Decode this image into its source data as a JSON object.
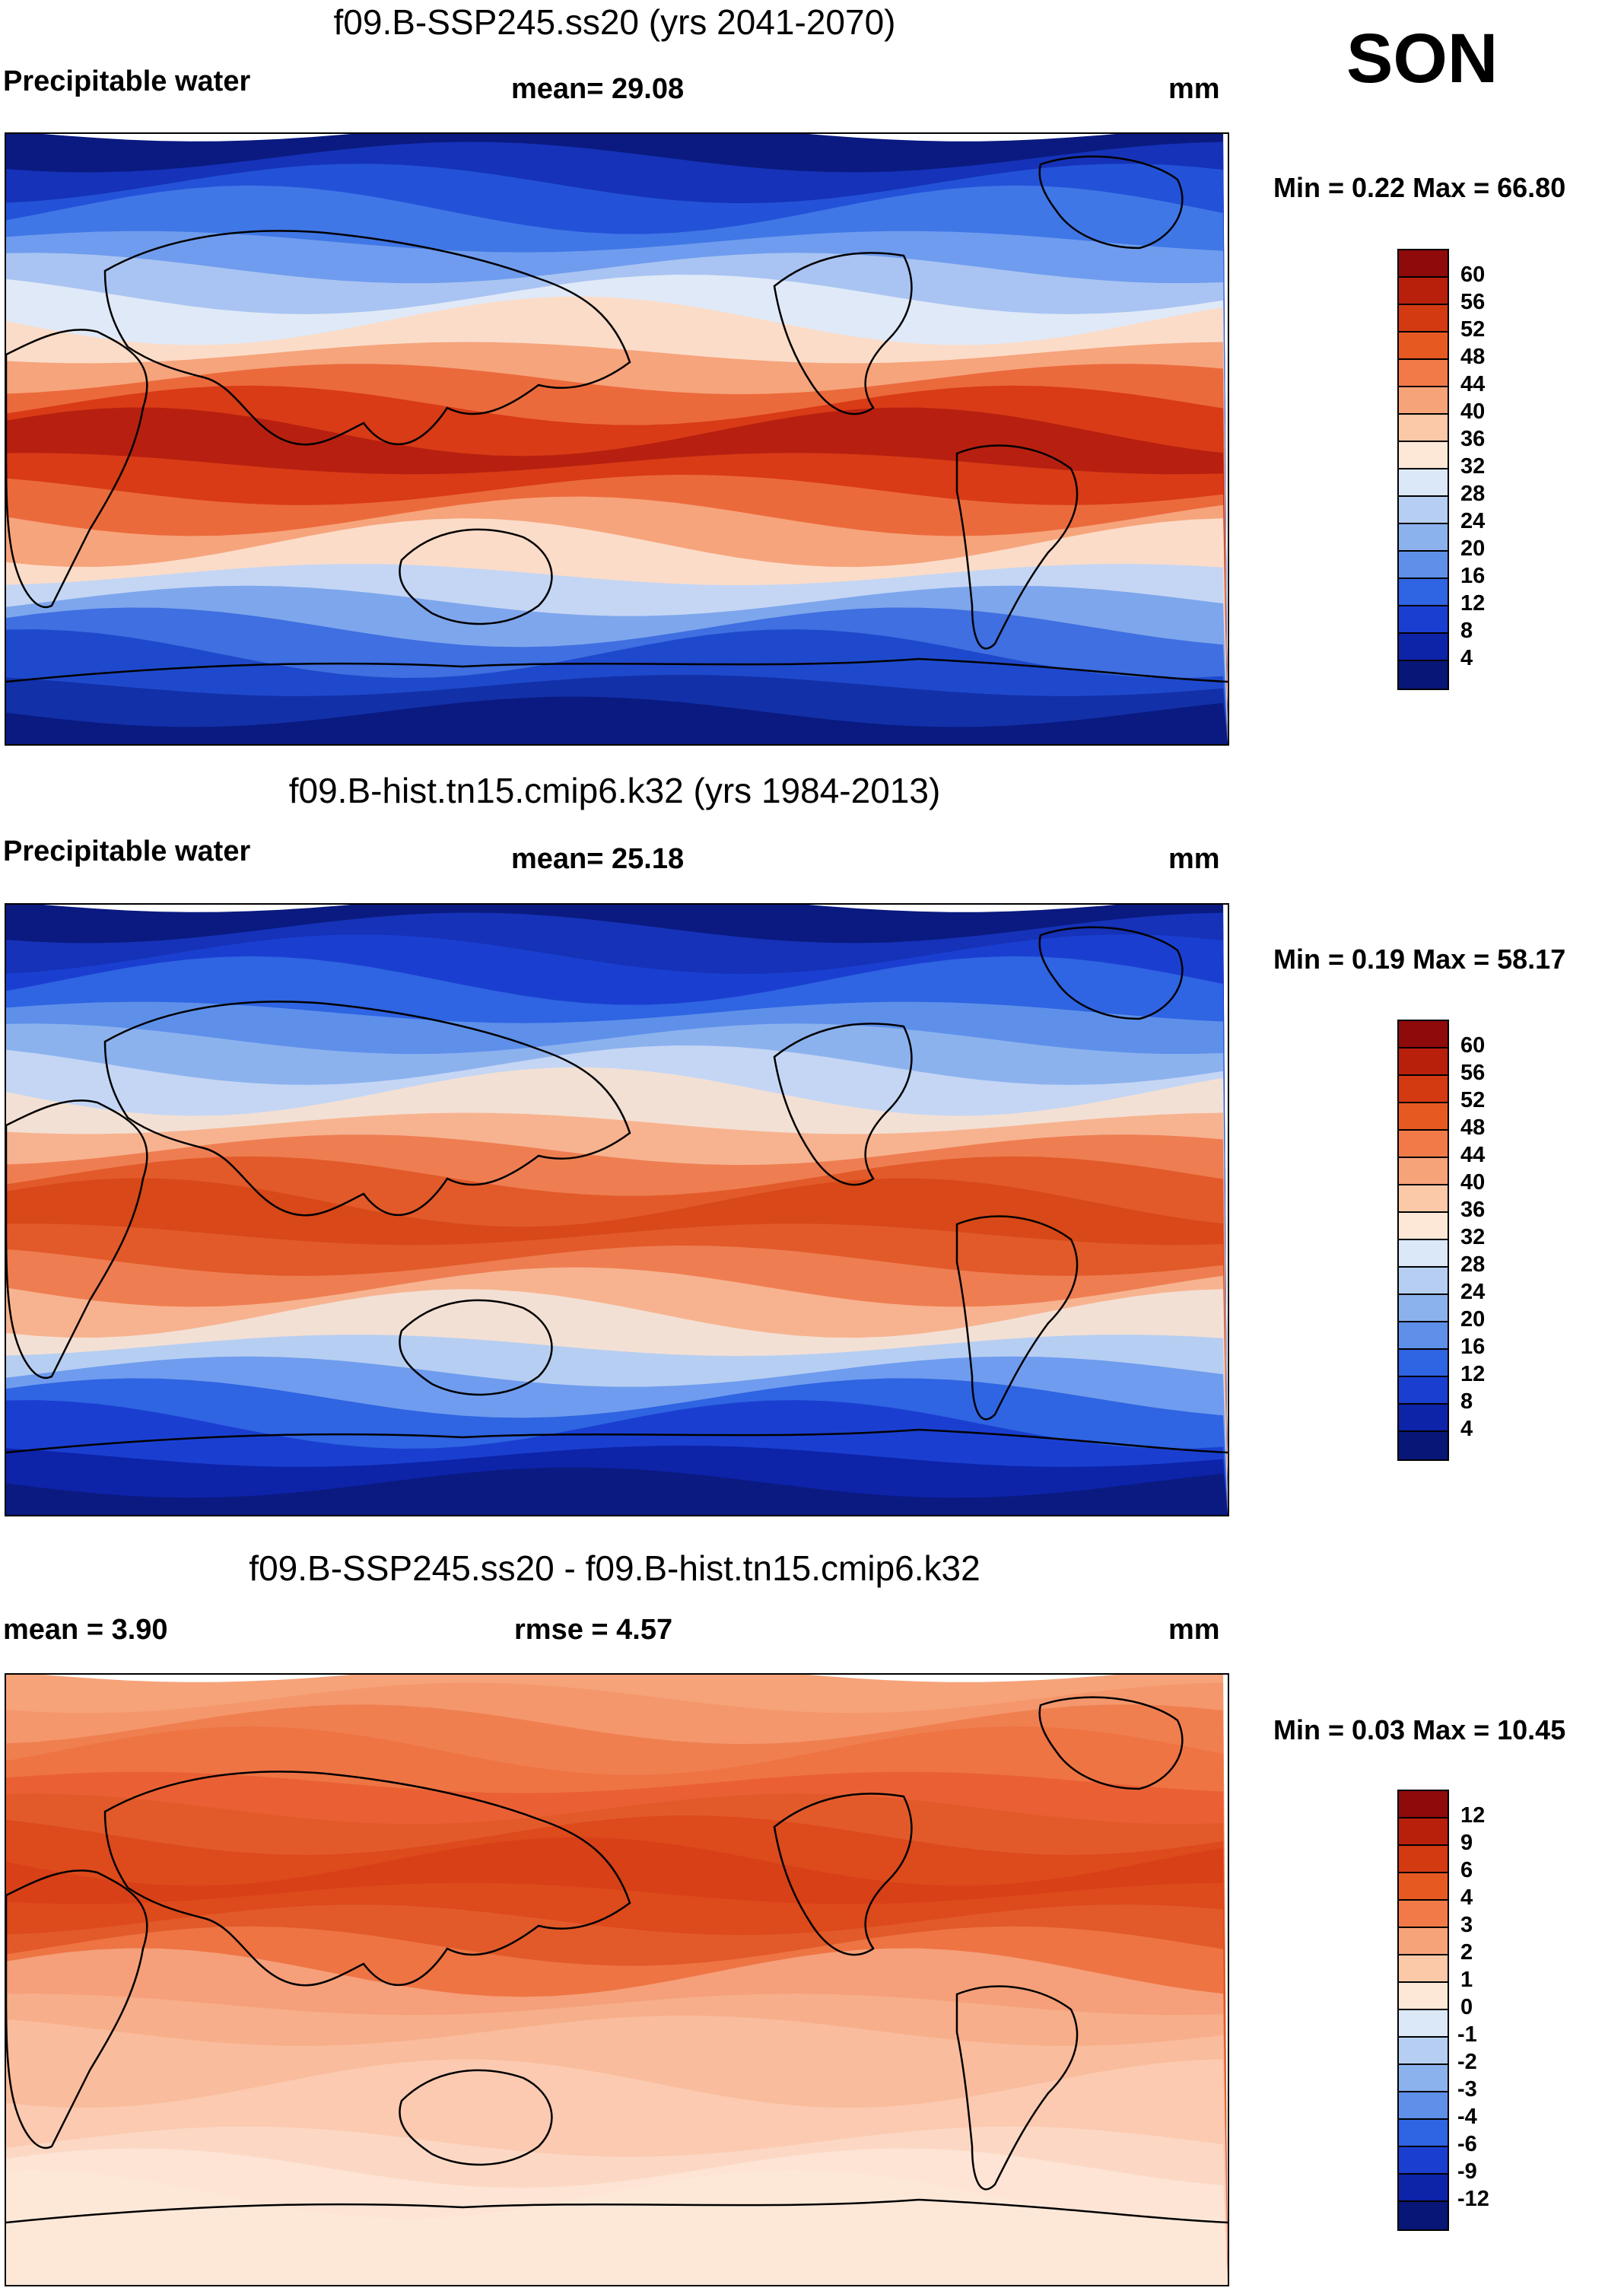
{
  "season": "SON",
  "panels": [
    {
      "title": "f09.B-SSP245.ss20 (yrs 2041-2070)",
      "left_label": "Precipitable water",
      "center_label": "mean=  29.08",
      "units": "mm",
      "minmax": "Min =   0.22 Max =  66.80",
      "levels": [
        "60",
        "56",
        "52",
        "48",
        "44",
        "40",
        "36",
        "32",
        "28",
        "24",
        "20",
        "16",
        "12",
        "8",
        "4"
      ],
      "colors": [
        "#8f0a0a",
        "#b8200c",
        "#d43a12",
        "#e65a22",
        "#f27a48",
        "#f7a37a",
        "#fbc8a8",
        "#fde8d8",
        "#dbe8f8",
        "#b6cef2",
        "#8cb2ee",
        "#5e90ea",
        "#2f64e2",
        "#1a3fd0",
        "#0d23a8",
        "#071677"
      ],
      "bands": [
        "#0a1a80",
        "#1532b8",
        "#2352d8",
        "#4077e6",
        "#6f9cee",
        "#a9c4f2",
        "#e0e9f7",
        "#fbdcc8",
        "#f6a47c",
        "#eb6a3c",
        "#d83b16",
        "#b72010",
        "#d83b16",
        "#eb6a3c",
        "#f6a47c",
        "#fbdcc8",
        "#c4d6f4",
        "#7ea6ec",
        "#3f6fe0",
        "#1f49cc",
        "#1230a8",
        "#0a1a80"
      ]
    },
    {
      "title": "f09.B-hist.tn15.cmip6.k32 (yrs 1984-2013)",
      "left_label": "Precipitable water",
      "center_label": "mean=  25.18",
      "units": "mm",
      "minmax": "Min =   0.19 Max =  58.17",
      "levels": [
        "60",
        "56",
        "52",
        "48",
        "44",
        "40",
        "36",
        "32",
        "28",
        "24",
        "20",
        "16",
        "12",
        "8",
        "4"
      ],
      "colors": [
        "#8f0a0a",
        "#b8200c",
        "#d43a12",
        "#e65a22",
        "#f27a48",
        "#f7a37a",
        "#fbc8a8",
        "#fde8d8",
        "#dbe8f8",
        "#b6cef2",
        "#8cb2ee",
        "#5e90ea",
        "#2f64e2",
        "#1a3fd0",
        "#0d23a8",
        "#071677"
      ],
      "bands": [
        "#0a1a80",
        "#1532b8",
        "#1a3fd0",
        "#2f64e2",
        "#5e90ea",
        "#8cb2ee",
        "#c4d6f4",
        "#f3e0d4",
        "#f7b390",
        "#ee7e52",
        "#e25a2a",
        "#d84818",
        "#e25a2a",
        "#ee7e52",
        "#f7b390",
        "#f3e0d4",
        "#b6cef2",
        "#6f9cee",
        "#2f64e2",
        "#1a3fd0",
        "#0d23a8",
        "#0a1a80"
      ]
    },
    {
      "title": "f09.B-SSP245.ss20 - f09.B-hist.tn15.cmip6.k32",
      "left_label": "mean =    3.90",
      "center_label": "rmse =    4.57",
      "units": "mm",
      "minmax": "Min =   0.03 Max =  10.45",
      "levels": [
        "12",
        "9",
        "6",
        "4",
        "3",
        "2",
        "1",
        "0",
        "-1",
        "-2",
        "-3",
        "-4",
        "-6",
        "-9",
        "-12"
      ],
      "colors": [
        "#8f0a0a",
        "#b8200c",
        "#d43a12",
        "#e65a22",
        "#f27a48",
        "#f7a37a",
        "#fbc8a8",
        "#fde8d8",
        "#dbe8f8",
        "#b6cef2",
        "#8cb2ee",
        "#5e90ea",
        "#2f64e2",
        "#1a3fd0",
        "#0d23a8",
        "#071677"
      ],
      "bands": [
        "#f7a37a",
        "#f4976c",
        "#f07f50",
        "#ee7444",
        "#ea6034",
        "#e25a2a",
        "#dd4a1c",
        "#d84018",
        "#dd4a1c",
        "#e25a2a",
        "#ee7444",
        "#f5a07a",
        "#f7ae8a",
        "#f9bc9c",
        "#f9bc9c",
        "#fbcab0",
        "#fbcab0",
        "#fcd8c4",
        "#fde4d4",
        "#fde8d8",
        "#fde8d8",
        "#fde8d8"
      ]
    }
  ]
}
